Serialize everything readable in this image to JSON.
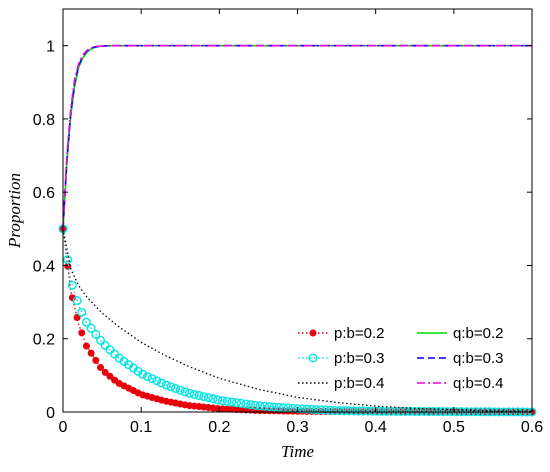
{
  "chart_data": {
    "type": "line",
    "title": "",
    "xlabel": "Time",
    "ylabel": "Proportion",
    "xlim": [
      0,
      0.6
    ],
    "ylim": [
      0,
      1.1
    ],
    "xticks": [
      0,
      0.1,
      0.2,
      0.3,
      0.4,
      0.5,
      0.6
    ],
    "xtick_labels": [
      "0",
      "0.1",
      "0.2",
      "0.3",
      "0.4",
      "0.5",
      "0.6"
    ],
    "yticks": [
      0,
      0.2,
      0.4,
      0.6,
      0.8,
      1
    ],
    "ytick_labels": [
      "0",
      "0.2",
      "0.4",
      "0.6",
      "0.8",
      "1"
    ],
    "grid": false,
    "legend_placement": "bottom-right",
    "series": [
      {
        "name": "p:b=0.2",
        "color": "#e8000b",
        "line_style": "dotted",
        "marker": "filled-circle",
        "x": [
          0,
          0.01,
          0.02,
          0.03,
          0.05,
          0.07,
          0.1,
          0.13,
          0.16,
          0.2,
          0.25,
          0.3,
          0.35,
          0.4,
          0.5,
          0.6
        ],
        "y": [
          0.5,
          0.33,
          0.24,
          0.18,
          0.115,
          0.08,
          0.048,
          0.03,
          0.018,
          0.009,
          0.004,
          0.002,
          0.001,
          0,
          0,
          0
        ]
      },
      {
        "name": "q:b=0.2",
        "color": "#00dd00",
        "line_style": "solid",
        "marker": "none",
        "x": [
          0,
          0.005,
          0.01,
          0.015,
          0.02,
          0.025,
          0.03,
          0.035,
          0.04,
          0.05,
          0.06,
          0.1,
          0.2,
          0.3,
          0.4,
          0.5,
          0.6
        ],
        "y": [
          0.5,
          0.68,
          0.81,
          0.89,
          0.94,
          0.965,
          0.98,
          0.99,
          0.995,
          0.999,
          1,
          1,
          1,
          1,
          1,
          1,
          1
        ]
      },
      {
        "name": "p:b=0.3",
        "color": "#00e5e5",
        "line_style": "dotted",
        "marker": "open-circle",
        "x": [
          0,
          0.01,
          0.02,
          0.03,
          0.05,
          0.07,
          0.1,
          0.13,
          0.16,
          0.2,
          0.25,
          0.3,
          0.35,
          0.4,
          0.5,
          0.6
        ],
        "y": [
          0.5,
          0.36,
          0.29,
          0.245,
          0.19,
          0.15,
          0.105,
          0.075,
          0.052,
          0.032,
          0.017,
          0.009,
          0.004,
          0.002,
          0.001,
          0
        ]
      },
      {
        "name": "q:b=0.3",
        "color": "#0000ee",
        "line_style": "dashed",
        "marker": "none",
        "x": [
          0,
          0.005,
          0.01,
          0.015,
          0.02,
          0.025,
          0.03,
          0.035,
          0.04,
          0.05,
          0.06,
          0.1,
          0.2,
          0.3,
          0.4,
          0.5,
          0.6
        ],
        "y": [
          0.5,
          0.69,
          0.82,
          0.9,
          0.945,
          0.97,
          0.984,
          0.992,
          0.996,
          0.999,
          1,
          1,
          1,
          1,
          1,
          1,
          1
        ]
      },
      {
        "name": "p:b=0.4",
        "color": "#000000",
        "line_style": "dotted",
        "marker": "none",
        "x": [
          0,
          0.01,
          0.02,
          0.03,
          0.05,
          0.07,
          0.1,
          0.13,
          0.16,
          0.2,
          0.25,
          0.3,
          0.35,
          0.4,
          0.45,
          0.5,
          0.55,
          0.6
        ],
        "y": [
          0.5,
          0.39,
          0.345,
          0.315,
          0.27,
          0.235,
          0.19,
          0.155,
          0.125,
          0.092,
          0.062,
          0.04,
          0.026,
          0.016,
          0.01,
          0.006,
          0.003,
          0.002
        ]
      },
      {
        "name": "q:b=0.4",
        "color": "#ee00ee",
        "line_style": "dashdot",
        "marker": "none",
        "x": [
          0,
          0.005,
          0.01,
          0.015,
          0.02,
          0.025,
          0.03,
          0.035,
          0.04,
          0.05,
          0.06,
          0.1,
          0.2,
          0.3,
          0.4,
          0.5,
          0.6
        ],
        "y": [
          0.5,
          0.7,
          0.83,
          0.91,
          0.95,
          0.973,
          0.986,
          0.993,
          0.997,
          0.999,
          1,
          1,
          1,
          1,
          1,
          1,
          1
        ]
      }
    ]
  }
}
